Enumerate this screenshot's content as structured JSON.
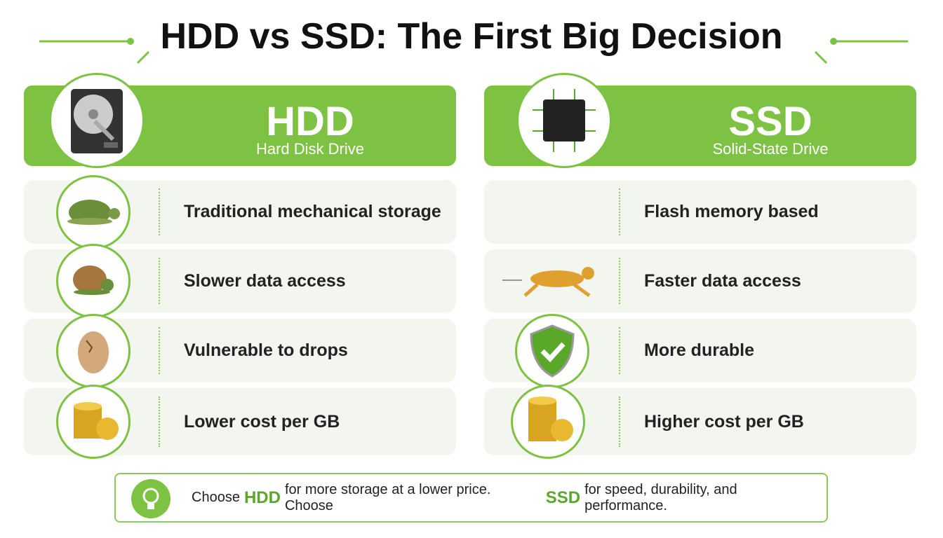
{
  "title": "HDD vs SSD: The First Big Decision",
  "columns": [
    {
      "name": "HDD",
      "subtitle": "Hard Disk Drive",
      "rows": [
        "Traditional mechanical storage",
        "Slower data access",
        "Vulnerable to drops",
        "Lower cost per GB"
      ]
    },
    {
      "name": "SSD",
      "subtitle": "Solid-State Drive",
      "rows": [
        "Flash memory based",
        "Faster data access",
        "More durable",
        "Higher cost per GB"
      ]
    }
  ],
  "footer": [
    "Choose",
    "HDD",
    "for more storage at a lower price. Choose",
    "SSD",
    "for speed, durability, and performance."
  ]
}
